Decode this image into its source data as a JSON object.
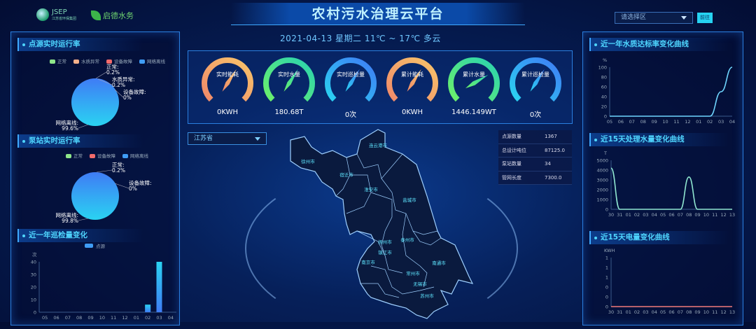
{
  "header": {
    "title": "农村污水治理云平台",
    "logo1_text": "JSEP",
    "logo1_sub": "江苏省环保集团",
    "logo2_text": "启德水务",
    "area_select_placeholder": "请选择区",
    "go_button": "前往"
  },
  "date_line": "2021-04-13   星期二   11℃ ~ 17℃  多云",
  "colors": {
    "accent": "#4fd6ff",
    "panel_border": "#2a7fe0",
    "pie_blue": "#3f7cf5",
    "pie_cyan": "#2ad3f2"
  },
  "left": {
    "point_source": {
      "title": "点源实时运行率",
      "legend": [
        {
          "label": "正常",
          "color": "#8ee68a"
        },
        {
          "label": "水质异常",
          "color": "#f5b08a"
        },
        {
          "label": "设备故障",
          "color": "#f26b6b"
        },
        {
          "label": "网络离线",
          "color": "#3f9cf5"
        }
      ],
      "labels": [
        {
          "text": "正常:",
          "pct": "0.2%"
        },
        {
          "text": "水质异常:",
          "pct": "0.2%"
        },
        {
          "text": "设备故障:",
          "pct": "0%"
        },
        {
          "text": "网络离线:",
          "pct": "99.6%"
        }
      ]
    },
    "pump_station": {
      "title": "泵站实时运行率",
      "legend": [
        {
          "label": "正常",
          "color": "#8ee68a"
        },
        {
          "label": "设备故障",
          "color": "#f26b6b"
        },
        {
          "label": "网络离线",
          "color": "#3f9cf5"
        }
      ],
      "labels": [
        {
          "text": "正常:",
          "pct": "0.2%"
        },
        {
          "text": "设备故障:",
          "pct": "0%"
        },
        {
          "text": "网络离线:",
          "pct": "99.8%"
        }
      ]
    },
    "inspection": {
      "title": "近一年巡检量变化",
      "legend": "点源"
    }
  },
  "gauges": [
    {
      "label": "实时能耗",
      "value": "0KWH",
      "from": "#f08a6a",
      "to": "#f7c36a",
      "pointer": 0.62
    },
    {
      "label": "实时水量",
      "value": "180.68T",
      "from": "#6cf06a",
      "to": "#2ad3b0",
      "pointer": 0.62
    },
    {
      "label": "实时巡检量",
      "value": "0次",
      "from": "#2ad3f2",
      "to": "#3f7cf5",
      "pointer": 0.62
    },
    {
      "label": "累计能耗",
      "value": "0KWH",
      "from": "#f08a6a",
      "to": "#f7c36a",
      "pointer": 0.62
    },
    {
      "label": "累计水量",
      "value": "1446.149WT",
      "from": "#6cf06a",
      "to": "#2ad3b0",
      "pointer": 0.72
    },
    {
      "label": "累计巡检量",
      "value": "0次",
      "from": "#2ad3f2",
      "to": "#3f7cf5",
      "pointer": 0.62
    }
  ],
  "map": {
    "province_select": "江苏省",
    "cities": [
      "徐州市",
      "连云港市",
      "宿迁市",
      "淮安市",
      "盐城市",
      "扬州市",
      "泰州市",
      "镇江市",
      "南京市",
      "南通市",
      "常州市",
      "无锡市",
      "苏州市"
    ]
  },
  "stats": [
    {
      "k": "点源数量",
      "v": "1367"
    },
    {
      "k": "总设计吨位",
      "v": "87125.0"
    },
    {
      "k": "泵站数量",
      "v": "34"
    },
    {
      "k": "管网长度",
      "v": "7300.0"
    }
  ],
  "right": {
    "water_quality_title": "近一年水质达标率变化曲线",
    "water_volume_title": "近15天处理水量变化曲线",
    "power_title": "近15天电量变化曲线"
  },
  "chart_data": [
    {
      "type": "bar",
      "title": "近一年巡检量变化",
      "ylabel": "次",
      "categories": [
        "05",
        "06",
        "07",
        "08",
        "09",
        "10",
        "11",
        "12",
        "01",
        "02",
        "03",
        "04"
      ],
      "series": [
        {
          "name": "点源",
          "values": [
            0,
            0,
            0,
            0,
            0,
            0,
            0,
            0,
            0,
            6,
            40,
            0
          ]
        }
      ],
      "yticks": [
        "0",
        "10",
        "20",
        "30",
        "40"
      ],
      "ylim": [
        0,
        40
      ]
    },
    {
      "type": "line",
      "title": "近一年水质达标率变化曲线",
      "ylabel": "%",
      "categories": [
        "05",
        "06",
        "07",
        "08",
        "09",
        "10",
        "11",
        "12",
        "01",
        "02",
        "03",
        "04"
      ],
      "values": [
        0,
        0,
        0,
        0,
        0,
        0,
        0,
        0,
        0,
        0,
        50,
        100
      ],
      "yticks": [
        "0",
        "20",
        "40",
        "60",
        "80",
        "100"
      ],
      "ylim": [
        0,
        100
      ]
    },
    {
      "type": "line",
      "title": "近15天处理水量变化曲线",
      "ylabel": "T",
      "categories": [
        "30",
        "31",
        "01",
        "02",
        "03",
        "04",
        "05",
        "06",
        "07",
        "08",
        "09",
        "10",
        "11",
        "12",
        "13"
      ],
      "values": [
        4200,
        0,
        0,
        0,
        0,
        0,
        0,
        0,
        0,
        3300,
        0,
        0,
        0,
        0,
        0
      ],
      "yticks": [
        "0",
        "1000",
        "2000",
        "3000",
        "4000",
        "5000"
      ],
      "ylim": [
        0,
        5000
      ]
    },
    {
      "type": "line",
      "title": "近15天电量变化曲线",
      "ylabel": "KWH",
      "categories": [
        "30",
        "31",
        "01",
        "02",
        "03",
        "04",
        "05",
        "06",
        "07",
        "08",
        "09",
        "10",
        "11",
        "12",
        "13"
      ],
      "values": [
        0,
        0,
        0,
        0,
        0,
        0,
        0,
        0,
        0,
        0,
        0,
        0,
        0,
        0,
        0
      ],
      "yticks": [
        "0",
        "0",
        "0",
        "1",
        "1",
        "1"
      ],
      "ylim": [
        0,
        1
      ]
    },
    {
      "type": "pie",
      "title": "点源实时运行率",
      "categories": [
        "正常",
        "水质异常",
        "设备故障",
        "网络离线"
      ],
      "values": [
        0.2,
        0.2,
        0,
        99.6
      ]
    },
    {
      "type": "pie",
      "title": "泵站实时运行率",
      "categories": [
        "正常",
        "设备故障",
        "网络离线"
      ],
      "values": [
        0.2,
        0,
        99.8
      ]
    }
  ]
}
